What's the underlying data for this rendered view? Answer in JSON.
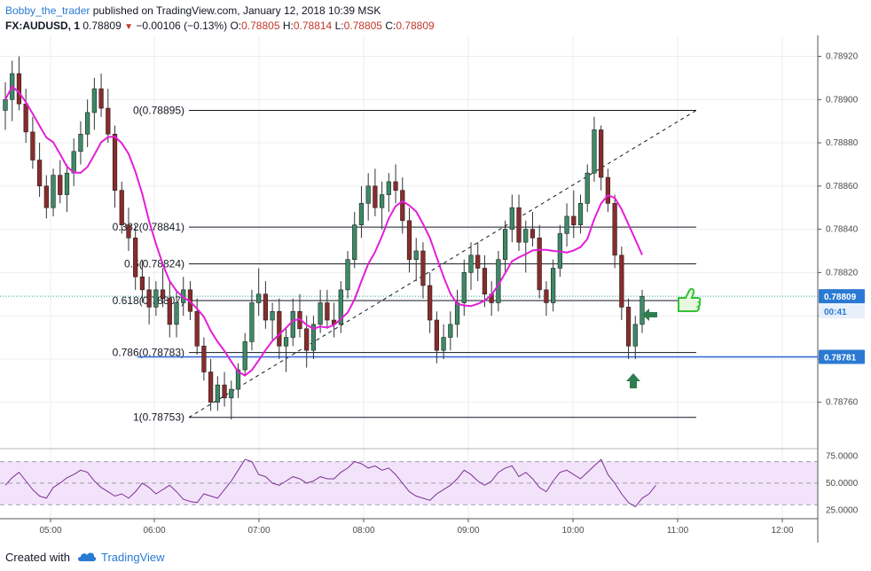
{
  "header": {
    "author": "Bobby_the_trader",
    "published": "published on TradingView.com, January 12, 2018 10:39 MSK",
    "symbol": "FX:AUDUSD, 1",
    "last": "0.78809",
    "change": "−0.00106 (−0.13%)",
    "o_label": "O:",
    "o": "0.78805",
    "h_label": "H:",
    "h": "0.78814",
    "l_label": "L:",
    "l": "0.78805",
    "c_label": "C:",
    "c": "0.78809"
  },
  "footer": {
    "created_with": "Created with",
    "brand": "TradingView"
  },
  "colors": {
    "bull": "#26a69a",
    "bear": "#ef5350",
    "ma": "#e41ed8",
    "rsi": "#7b3294",
    "rsi_band": "#f3e3fa",
    "support": "#2a62d6",
    "arrow": "#2e7d4f",
    "thumb": "#34c236",
    "price_tag": "#2a7ad3"
  },
  "icons": [
    "down-triangle-icon",
    "tradingview-cloud-icon",
    "thumbs-up-icon",
    "arrow-left-icon",
    "arrow-up-icon"
  ],
  "chart_data": [
    {
      "type": "candlestick",
      "title": "",
      "x_ticks": [
        "05:00",
        "06:00",
        "07:00",
        "08:00",
        "09:00",
        "10:00",
        "11:00",
        "12:00"
      ],
      "y_ticks": [
        "0.78760",
        "0.78780",
        "0.78800",
        "0.78820",
        "0.78840",
        "0.78860",
        "0.78880",
        "0.78900",
        "0.78920"
      ],
      "ylim": [
        0.78741,
        0.78928
      ],
      "moving_average_color": "#e41ed8",
      "fibonacci": [
        {
          "ratio": "0",
          "price": "0.78895",
          "label": "0(0.78895)"
        },
        {
          "ratio": "0.382",
          "price": "0.78841",
          "label": "0.382(0.78841)"
        },
        {
          "ratio": "0.5",
          "price": "0.78824",
          "label": "0.5(0.78824)"
        },
        {
          "ratio": "0.618",
          "price": "0.78807",
          "label": "0.618(0.78807)"
        },
        {
          "ratio": "0.786",
          "price": "0.78783",
          "label": "0.786(0.78783)"
        },
        {
          "ratio": "1",
          "price": "0.78753",
          "label": "1(0.78753)"
        }
      ],
      "support_level": 0.78781,
      "price_labels": [
        {
          "text": "0.78809",
          "value": 0.78809
        },
        {
          "text": "00:41",
          "value": 0.78803
        },
        {
          "text": "0.78781",
          "value": 0.78781
        }
      ],
      "series": [
        {
          "name": "",
          "ohlc": [
            [
              0.78895,
              0.78908,
              0.78886,
              0.789
            ],
            [
              0.789,
              0.78918,
              0.7889,
              0.78912
            ],
            [
              0.78912,
              0.7892,
              0.78895,
              0.78898
            ],
            [
              0.78898,
              0.78905,
              0.7888,
              0.78885
            ],
            [
              0.78885,
              0.78892,
              0.78868,
              0.78872
            ],
            [
              0.78872,
              0.7888,
              0.78855,
              0.7886
            ],
            [
              0.7886,
              0.78865,
              0.78845,
              0.7885
            ],
            [
              0.7885,
              0.78868,
              0.78846,
              0.78865
            ],
            [
              0.78865,
              0.78872,
              0.78852,
              0.78856
            ],
            [
              0.78856,
              0.7887,
              0.78848,
              0.78866
            ],
            [
              0.78866,
              0.78882,
              0.7886,
              0.78876
            ],
            [
              0.78876,
              0.7889,
              0.7887,
              0.78884
            ],
            [
              0.78884,
              0.789,
              0.78878,
              0.78894
            ],
            [
              0.78894,
              0.7891,
              0.78886,
              0.78905
            ],
            [
              0.78905,
              0.78912,
              0.78892,
              0.78896
            ],
            [
              0.78896,
              0.78905,
              0.7888,
              0.78884
            ],
            [
              0.78884,
              0.78888,
              0.7885,
              0.78858
            ],
            [
              0.78858,
              0.78862,
              0.78838,
              0.78842
            ],
            [
              0.78842,
              0.7885,
              0.7883,
              0.78836
            ],
            [
              0.78836,
              0.78842,
              0.78812,
              0.78818
            ],
            [
              0.78818,
              0.78826,
              0.78806,
              0.78812
            ],
            [
              0.78812,
              0.78818,
              0.78796,
              0.78804
            ],
            [
              0.78804,
              0.78816,
              0.788,
              0.78812
            ],
            [
              0.78812,
              0.78822,
              0.78804,
              0.78808
            ],
            [
              0.78808,
              0.78816,
              0.7879,
              0.78796
            ],
            [
              0.78796,
              0.78812,
              0.7879,
              0.78806
            ],
            [
              0.78806,
              0.78818,
              0.788,
              0.78812
            ],
            [
              0.78812,
              0.78816,
              0.78798,
              0.78802
            ],
            [
              0.78802,
              0.78808,
              0.78782,
              0.78786
            ],
            [
              0.78786,
              0.7879,
              0.7877,
              0.78774
            ],
            [
              0.78774,
              0.7878,
              0.78756,
              0.7876
            ],
            [
              0.7876,
              0.78772,
              0.78756,
              0.78768
            ],
            [
              0.78768,
              0.78774,
              0.78758,
              0.78762
            ],
            [
              0.78762,
              0.7877,
              0.78752,
              0.78766
            ],
            [
              0.78766,
              0.78778,
              0.78762,
              0.78775
            ],
            [
              0.78775,
              0.78792,
              0.78772,
              0.78788
            ],
            [
              0.78788,
              0.78812,
              0.78784,
              0.78806
            ],
            [
              0.78806,
              0.78822,
              0.788,
              0.7881
            ],
            [
              0.7881,
              0.78816,
              0.78794,
              0.78798
            ],
            [
              0.78798,
              0.78806,
              0.78788,
              0.78802
            ],
            [
              0.78802,
              0.78808,
              0.7878,
              0.78786
            ],
            [
              0.78786,
              0.78794,
              0.78774,
              0.7879
            ],
            [
              0.7879,
              0.78808,
              0.78786,
              0.78802
            ],
            [
              0.78802,
              0.7881,
              0.7879,
              0.78794
            ],
            [
              0.78794,
              0.788,
              0.78776,
              0.78784
            ],
            [
              0.78784,
              0.788,
              0.7878,
              0.78796
            ],
            [
              0.78796,
              0.78812,
              0.78792,
              0.78806
            ],
            [
              0.78806,
              0.78812,
              0.78794,
              0.78798
            ],
            [
              0.78798,
              0.78806,
              0.7879,
              0.78796
            ],
            [
              0.78796,
              0.78816,
              0.78792,
              0.78812
            ],
            [
              0.78812,
              0.7883,
              0.78808,
              0.78826
            ],
            [
              0.78826,
              0.78848,
              0.78822,
              0.78842
            ],
            [
              0.78842,
              0.7886,
              0.78836,
              0.78852
            ],
            [
              0.78852,
              0.78866,
              0.78844,
              0.7886
            ],
            [
              0.7886,
              0.78868,
              0.78846,
              0.7885
            ],
            [
              0.7885,
              0.78862,
              0.7884,
              0.78856
            ],
            [
              0.78856,
              0.78866,
              0.78848,
              0.78862
            ],
            [
              0.78862,
              0.7887,
              0.78852,
              0.78858
            ],
            [
              0.78858,
              0.78864,
              0.78838,
              0.78844
            ],
            [
              0.78844,
              0.7885,
              0.7882,
              0.78826
            ],
            [
              0.78826,
              0.78836,
              0.78816,
              0.7883
            ],
            [
              0.7883,
              0.78834,
              0.78808,
              0.78814
            ],
            [
              0.78814,
              0.7882,
              0.78792,
              0.78798
            ],
            [
              0.78798,
              0.78802,
              0.78778,
              0.78784
            ],
            [
              0.78784,
              0.78796,
              0.7878,
              0.7879
            ],
            [
              0.7879,
              0.78802,
              0.78784,
              0.78796
            ],
            [
              0.78796,
              0.78812,
              0.7879,
              0.78806
            ],
            [
              0.78806,
              0.78826,
              0.788,
              0.7882
            ],
            [
              0.7882,
              0.78834,
              0.78812,
              0.78828
            ],
            [
              0.78828,
              0.78834,
              0.78816,
              0.78822
            ],
            [
              0.78822,
              0.78828,
              0.78804,
              0.7881
            ],
            [
              0.7881,
              0.78816,
              0.788,
              0.78806
            ],
            [
              0.78806,
              0.7883,
              0.78802,
              0.78826
            ],
            [
              0.78826,
              0.78844,
              0.7882,
              0.7884
            ],
            [
              0.7884,
              0.78856,
              0.78834,
              0.7885
            ],
            [
              0.7885,
              0.78856,
              0.7883,
              0.78834
            ],
            [
              0.78834,
              0.78844,
              0.7882,
              0.7884
            ],
            [
              0.7884,
              0.78848,
              0.78832,
              0.78836
            ],
            [
              0.78836,
              0.78842,
              0.78808,
              0.78812
            ],
            [
              0.78812,
              0.78816,
              0.788,
              0.78806
            ],
            [
              0.78806,
              0.78826,
              0.78802,
              0.78822
            ],
            [
              0.78822,
              0.78842,
              0.78818,
              0.78838
            ],
            [
              0.78838,
              0.78852,
              0.78832,
              0.78846
            ],
            [
              0.78846,
              0.78858,
              0.78836,
              0.78842
            ],
            [
              0.78842,
              0.78856,
              0.78838,
              0.78852
            ],
            [
              0.78852,
              0.7887,
              0.78848,
              0.78866
            ],
            [
              0.78866,
              0.78892,
              0.78862,
              0.78886
            ],
            [
              0.78886,
              0.78888,
              0.78858,
              0.78864
            ],
            [
              0.78864,
              0.78868,
              0.78848,
              0.78852
            ],
            [
              0.78852,
              0.78856,
              0.78822,
              0.78828
            ],
            [
              0.78828,
              0.78832,
              0.78798,
              0.78804
            ],
            [
              0.78804,
              0.78808,
              0.7878,
              0.78786
            ],
            [
              0.78786,
              0.788,
              0.7878,
              0.78796
            ],
            [
              0.78796,
              0.78812,
              0.78792,
              0.78809
            ]
          ]
        }
      ],
      "rsi": {
        "y_ticks": [
          "25.0000",
          "50.0000",
          "75.0000"
        ],
        "ylim": [
          17,
          82
        ],
        "band": [
          30,
          70
        ],
        "values": [
          48,
          55,
          60,
          52,
          44,
          38,
          36,
          46,
          50,
          55,
          58,
          62,
          60,
          52,
          46,
          42,
          38,
          40,
          36,
          42,
          50,
          46,
          40,
          44,
          48,
          42,
          35,
          33,
          32,
          40,
          38,
          36,
          44,
          52,
          62,
          72,
          70,
          58,
          56,
          50,
          48,
          52,
          56,
          54,
          50,
          52,
          56,
          54,
          54,
          60,
          64,
          70,
          68,
          64,
          66,
          62,
          64,
          58,
          50,
          42,
          38,
          36,
          34,
          40,
          44,
          48,
          54,
          62,
          58,
          52,
          48,
          52,
          60,
          64,
          66,
          56,
          60,
          54,
          46,
          42,
          52,
          60,
          62,
          58,
          54,
          60,
          66,
          72,
          58,
          50,
          40,
          32,
          28,
          36,
          40,
          48
        ]
      }
    }
  ]
}
